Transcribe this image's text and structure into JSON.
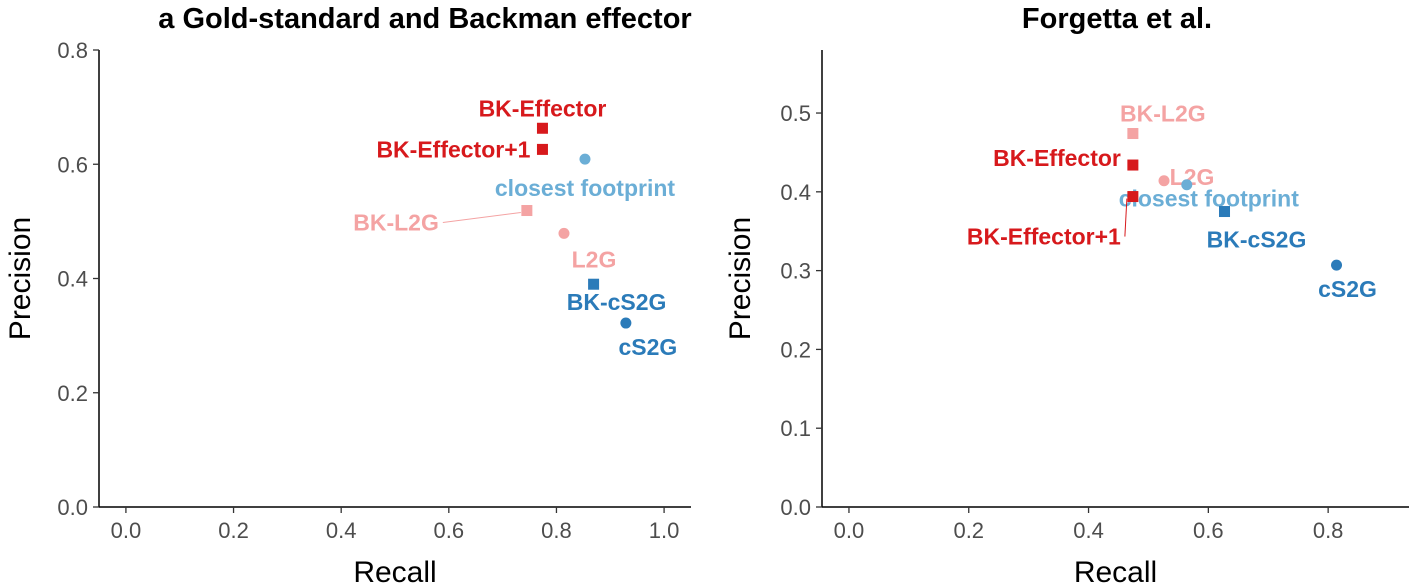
{
  "colors": {
    "BK-Effector": "#d7191c",
    "BK-Effector+1": "#d7191c",
    "BK-L2G": "#f4a3a3",
    "L2G": "#f4a3a3",
    "closest footprint": "#6baed6",
    "BK-cS2G": "#2b7bb9",
    "cS2G": "#2b7bb9"
  },
  "chart_data": [
    {
      "type": "scatter",
      "title": "a Gold-standard and Backman effector",
      "xlabel": "Recall",
      "ylabel": "Precision",
      "xlim": [
        -0.05,
        1.05
      ],
      "ylim": [
        0,
        0.8
      ],
      "xticks": [
        "0.0",
        "0.2",
        "0.4",
        "0.6",
        "0.8",
        "1.0"
      ],
      "yticks": [
        "0.0",
        "0.2",
        "0.4",
        "0.6",
        "0.8"
      ],
      "grid": false,
      "points": [
        {
          "label": "BK-Effector",
          "x": 0.774,
          "y": 0.663,
          "shape": "square"
        },
        {
          "label": "BK-Effector+1",
          "x": 0.774,
          "y": 0.626,
          "shape": "square"
        },
        {
          "label": "closest footprint",
          "x": 0.853,
          "y": 0.609,
          "shape": "circle"
        },
        {
          "label": "BK-L2G",
          "x": 0.745,
          "y": 0.519,
          "shape": "square"
        },
        {
          "label": "L2G",
          "x": 0.814,
          "y": 0.479,
          "shape": "circle"
        },
        {
          "label": "BK-cS2G",
          "x": 0.869,
          "y": 0.39,
          "shape": "square"
        },
        {
          "label": "cS2G",
          "x": 0.929,
          "y": 0.322,
          "shape": "circle"
        }
      ]
    },
    {
      "type": "scatter",
      "title": "Forgetta et al.",
      "xlabel": "Recall",
      "ylabel": "Precision",
      "xlim": [
        -0.045,
        0.935
      ],
      "ylim": [
        0,
        0.58
      ],
      "xticks": [
        "0.0",
        "0.2",
        "0.4",
        "0.6",
        "0.8"
      ],
      "yticks": [
        "0.0",
        "0.1",
        "0.2",
        "0.3",
        "0.4",
        "0.5"
      ],
      "grid": false,
      "points": [
        {
          "label": "BK-L2G",
          "x": 0.474,
          "y": 0.474,
          "shape": "square"
        },
        {
          "label": "BK-Effector",
          "x": 0.474,
          "y": 0.434,
          "shape": "square"
        },
        {
          "label": "L2G",
          "x": 0.526,
          "y": 0.414,
          "shape": "circle"
        },
        {
          "label": "closest footprint",
          "x": 0.564,
          "y": 0.409,
          "shape": "circle"
        },
        {
          "label": "BK-Effector+1",
          "x": 0.474,
          "y": 0.394,
          "shape": "square"
        },
        {
          "label": "BK-cS2G",
          "x": 0.627,
          "y": 0.375,
          "shape": "square"
        },
        {
          "label": "cS2G",
          "x": 0.814,
          "y": 0.307,
          "shape": "circle"
        }
      ]
    }
  ]
}
